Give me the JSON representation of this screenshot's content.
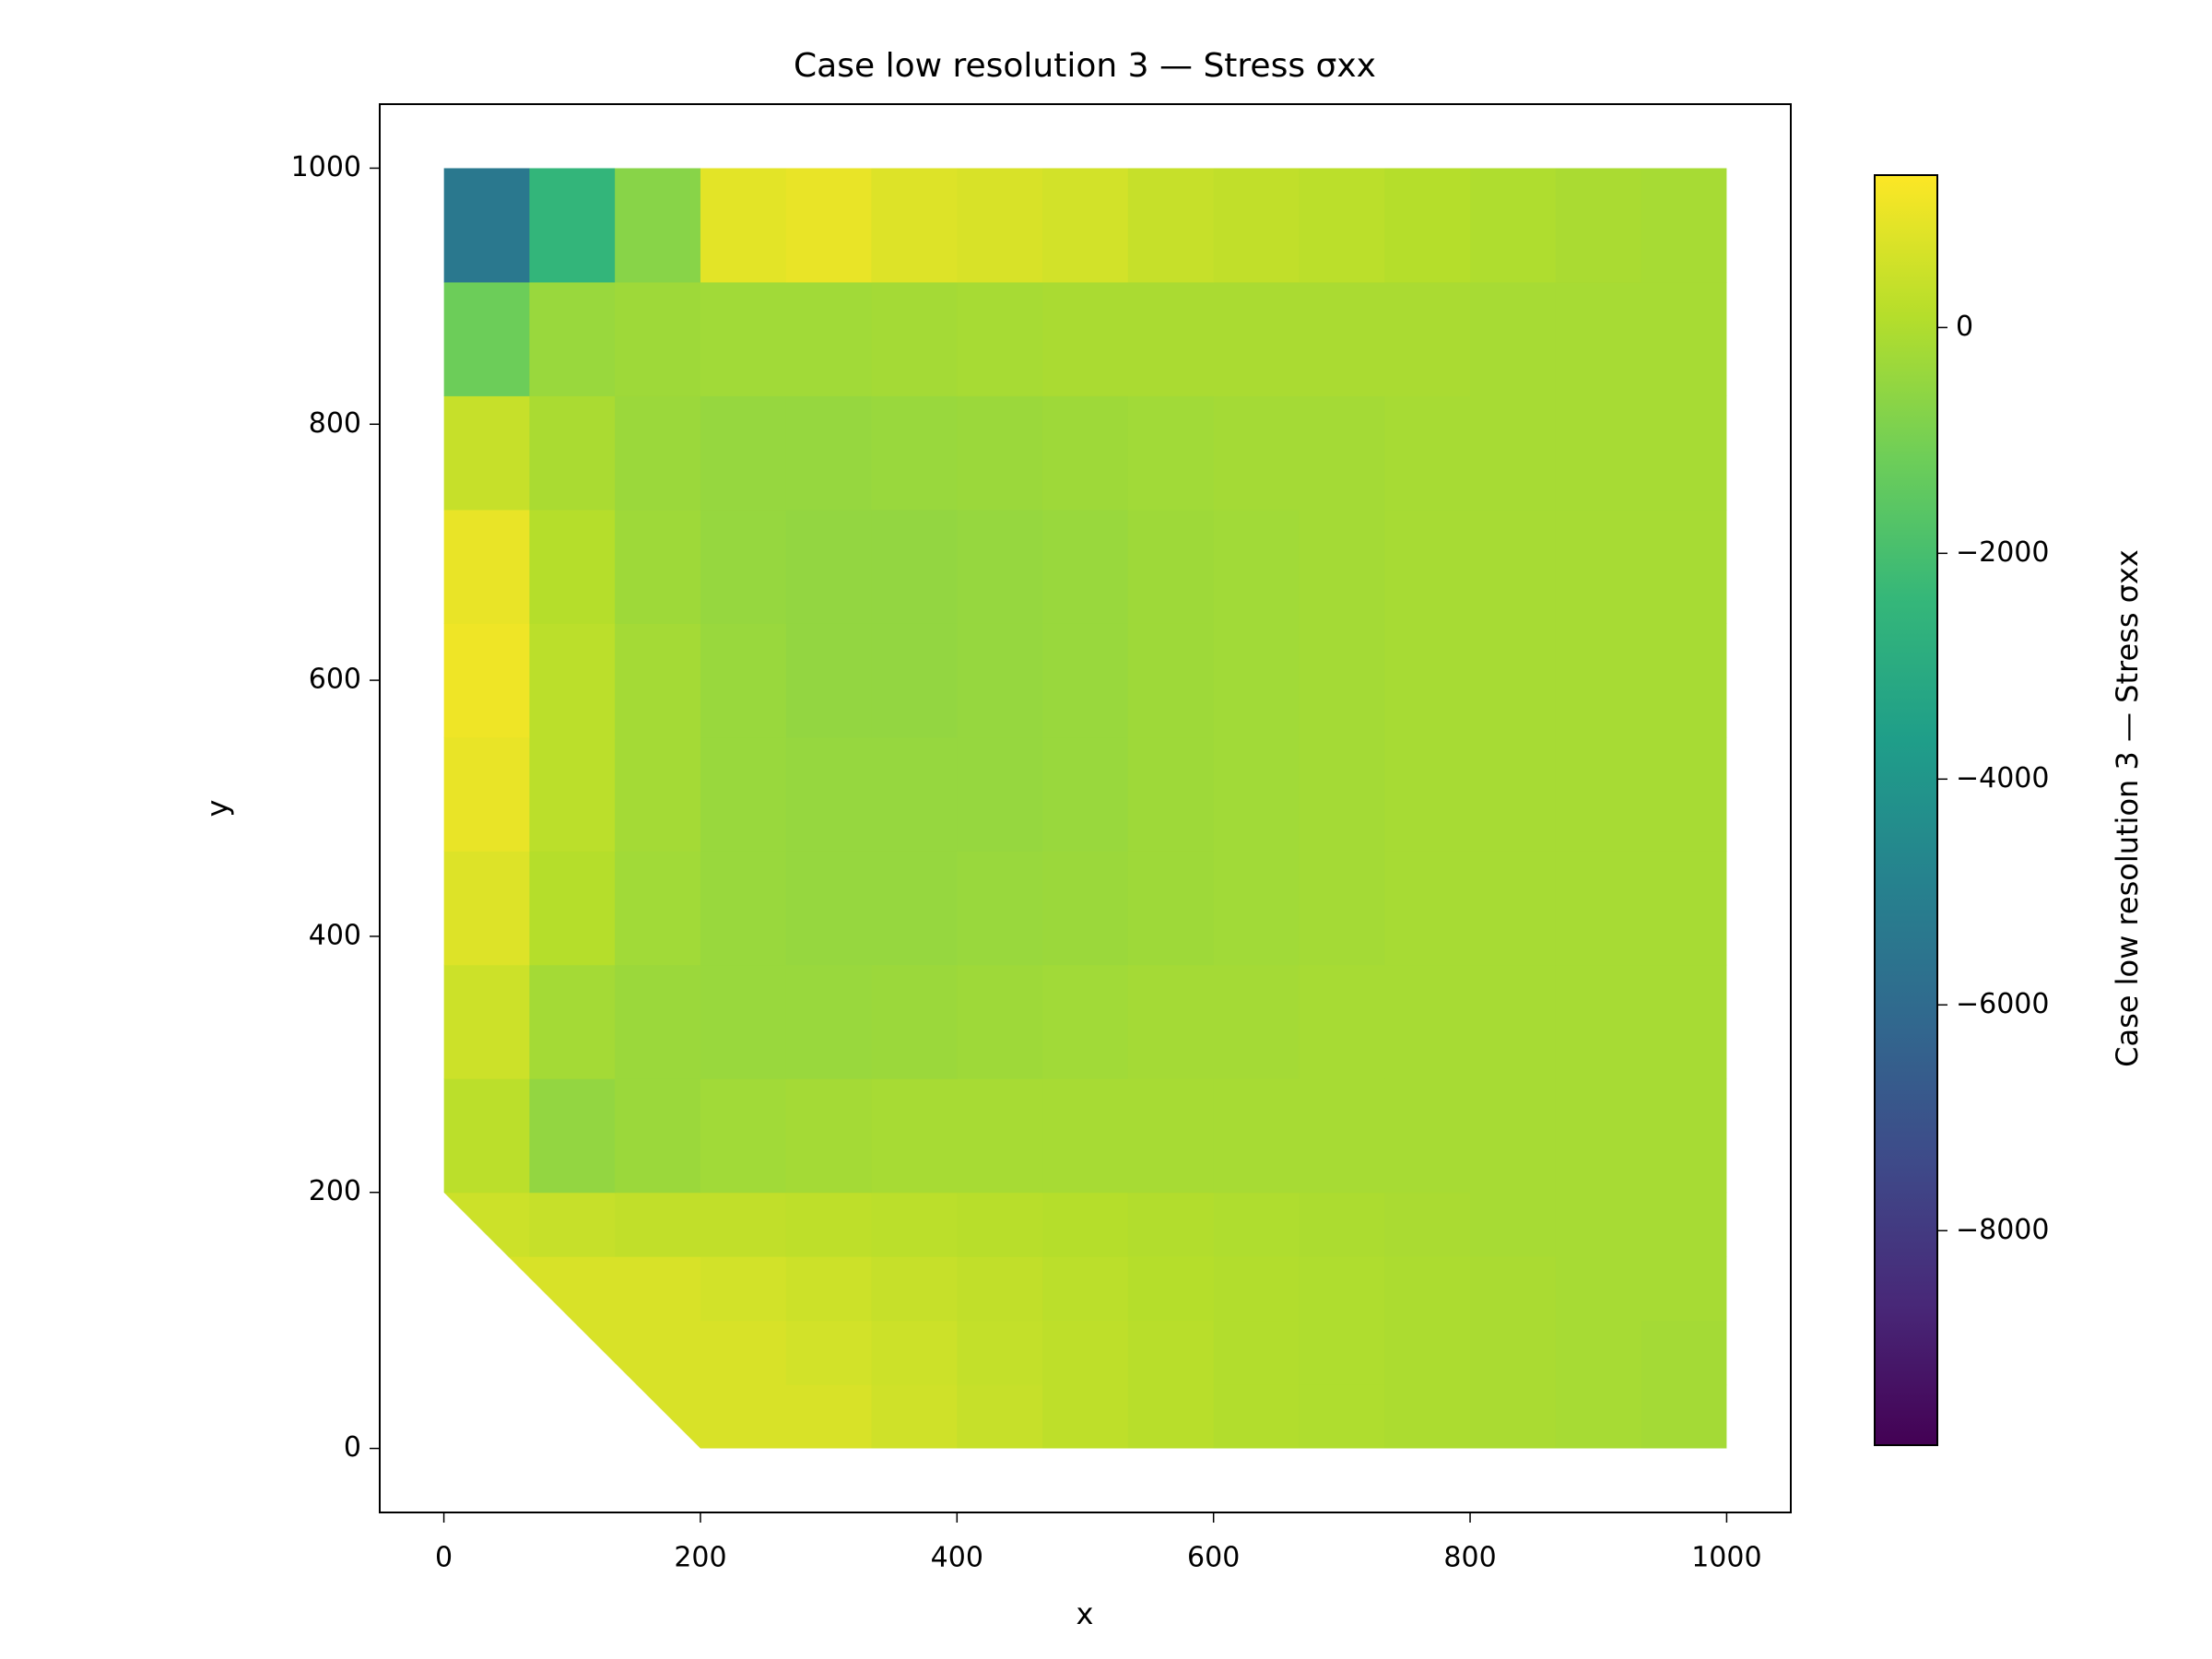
{
  "chart_data": {
    "type": "heatmap",
    "title": "Case low resolution 3 — Stress σxx",
    "xlabel": "x",
    "ylabel": "y",
    "colorbar_label": "Case low resolution 3 — Stress σxx",
    "colormap": "viridis",
    "xlim": [
      -50,
      1050
    ],
    "ylim": [
      -50,
      1050
    ],
    "xticks": [
      0,
      200,
      400,
      600,
      800,
      1000
    ],
    "yticks": [
      0,
      200,
      400,
      600,
      800,
      1000
    ],
    "clim": [
      -9900,
      1350
    ],
    "cticks": [
      {
        "value": -8000,
        "label": "−8000"
      },
      {
        "value": -6000,
        "label": "−6000"
      },
      {
        "value": -4000,
        "label": "−4000"
      },
      {
        "value": -2000,
        "label": "−2000"
      },
      0
    ],
    "domain": [
      [
        0,
        200
      ],
      [
        200,
        0
      ],
      [
        1000,
        0
      ],
      [
        1000,
        1000
      ],
      [
        0,
        1000
      ]
    ],
    "x_edges": [
      0,
      66.7,
      133.3,
      200,
      266.7,
      333.3,
      400,
      466.7,
      533.3,
      600,
      666.7,
      733.3,
      800,
      866.7,
      933.3,
      1000
    ],
    "y_edges": [
      0,
      50,
      100,
      150,
      200,
      288.9,
      377.8,
      466.7,
      555.6,
      644.4,
      733.3,
      822.2,
      911.1,
      1000
    ],
    "values": [
      [
        700,
        700,
        700,
        700,
        700,
        550,
        400,
        250,
        150,
        50,
        0,
        -50,
        -100,
        -150,
        -200
      ],
      [
        700,
        700,
        700,
        700,
        600,
        500,
        350,
        250,
        150,
        50,
        0,
        -50,
        -100,
        -150,
        -200
      ],
      [
        700,
        700,
        700,
        600,
        500,
        400,
        300,
        200,
        100,
        50,
        0,
        -50,
        -100,
        -150,
        -150
      ],
      [
        500,
        400,
        300,
        300,
        250,
        200,
        150,
        100,
        50,
        0,
        -50,
        -100,
        -150,
        -150,
        -150
      ],
      [
        200,
        -500,
        -350,
        -250,
        -200,
        -150,
        -150,
        -150,
        -150,
        -150,
        -150,
        -150,
        -150,
        -150,
        -150
      ],
      [
        500,
        -200,
        -350,
        -400,
        -400,
        -350,
        -300,
        -250,
        -200,
        -200,
        -150,
        -150,
        -150,
        -150,
        -150
      ],
      [
        800,
        100,
        -250,
        -400,
        -450,
        -450,
        -400,
        -350,
        -300,
        -250,
        -200,
        -150,
        -150,
        -150,
        -150
      ],
      [
        1000,
        200,
        -200,
        -400,
        -450,
        -450,
        -450,
        -400,
        -300,
        -250,
        -200,
        -150,
        -150,
        -150,
        -150
      ],
      [
        1100,
        200,
        -200,
        -400,
        -500,
        -500,
        -450,
        -400,
        -300,
        -250,
        -200,
        -150,
        -150,
        -150,
        -150
      ],
      [
        1000,
        100,
        -300,
        -450,
        -500,
        -500,
        -450,
        -400,
        -300,
        -250,
        -200,
        -150,
        -150,
        -150,
        -150
      ],
      [
        400,
        -100,
        -350,
        -450,
        -450,
        -400,
        -350,
        -300,
        -250,
        -200,
        -200,
        -150,
        -150,
        -150,
        -150
      ],
      [
        -1200,
        -400,
        -300,
        -250,
        -250,
        -200,
        -150,
        -100,
        -100,
        -100,
        -100,
        -100,
        -150,
        -150,
        -150
      ],
      [
        -5400,
        -2500,
        -700,
        900,
        1000,
        800,
        700,
        600,
        400,
        300,
        200,
        100,
        0,
        -100,
        -150
      ]
    ]
  }
}
